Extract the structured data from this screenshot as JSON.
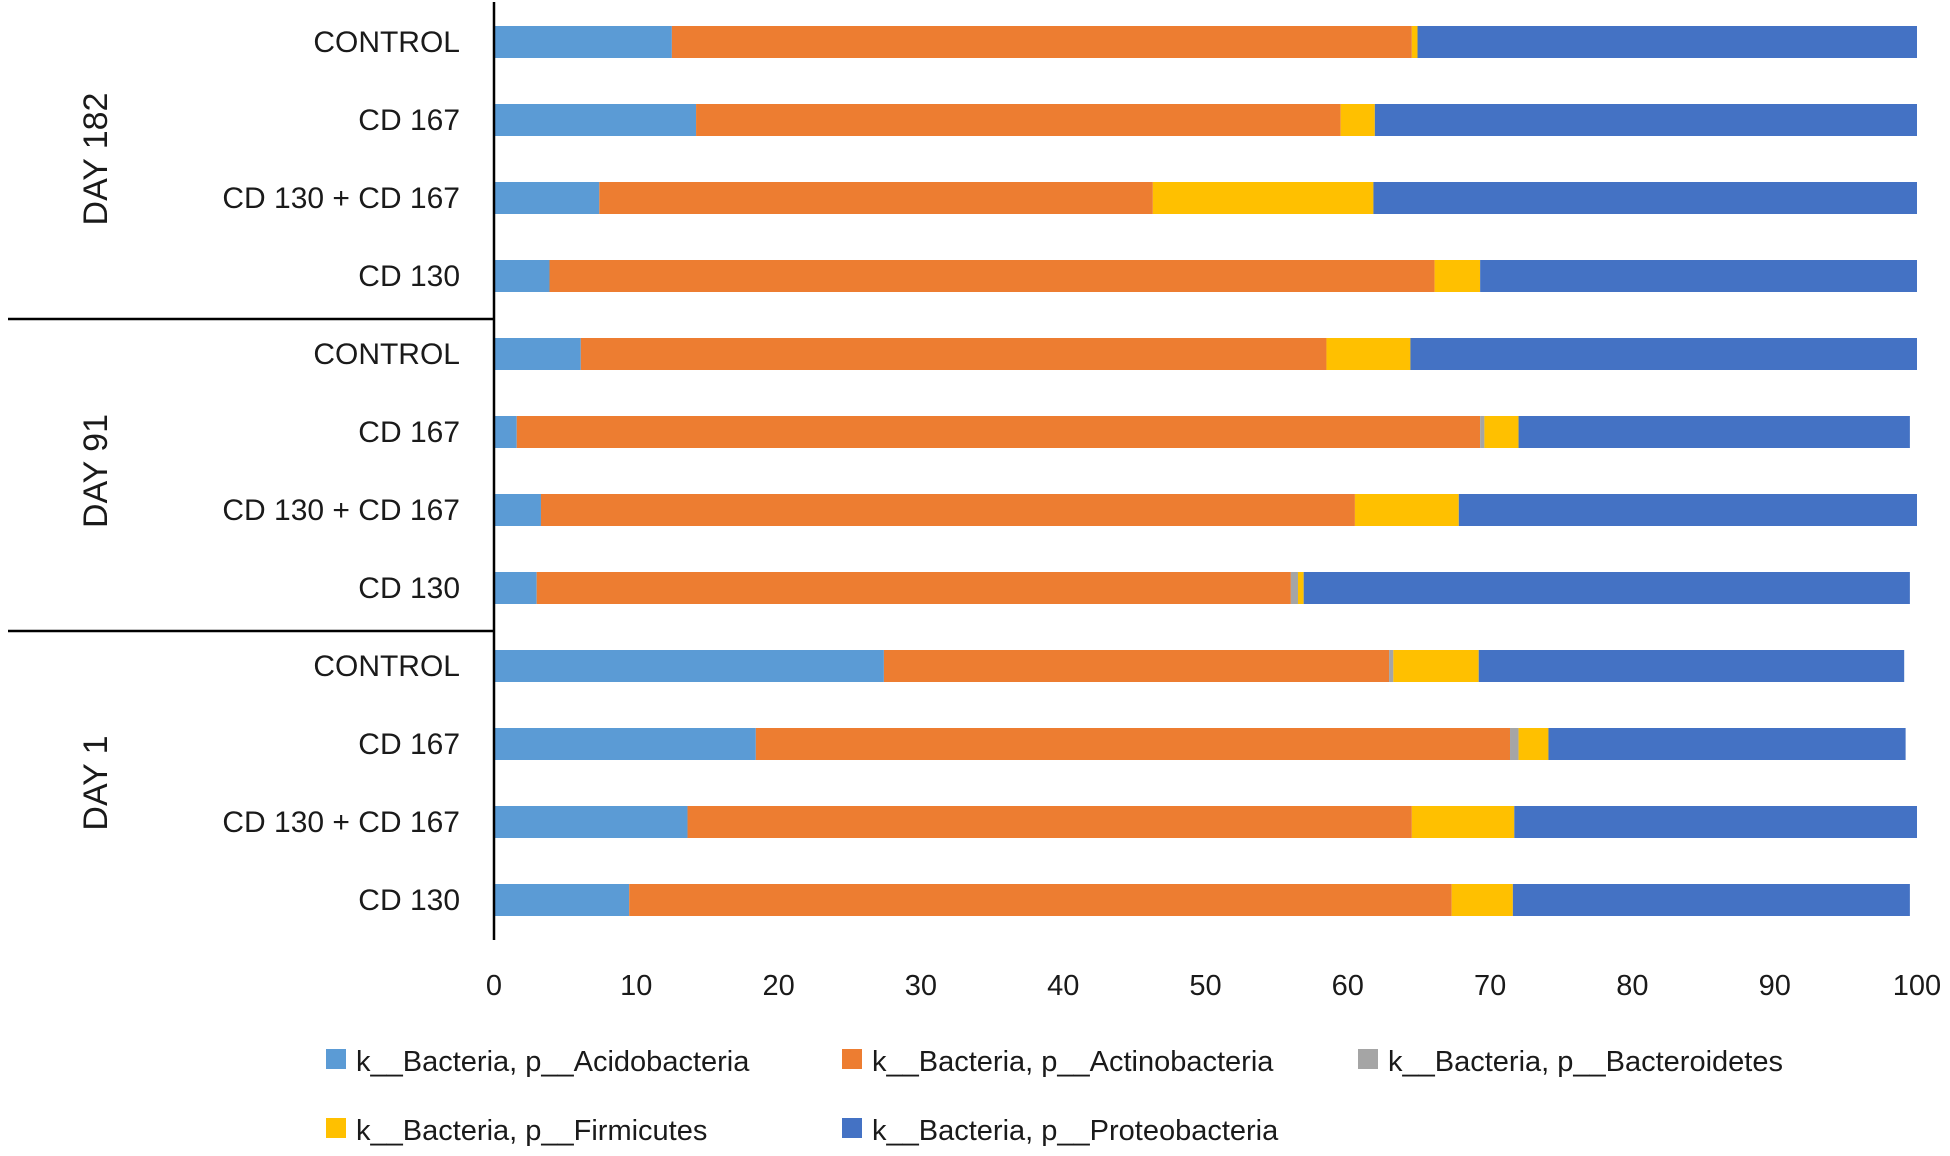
{
  "chart_data": {
    "type": "bar",
    "orientation": "horizontal",
    "stacked": true,
    "title": "",
    "xlabel": "",
    "ylabel": "",
    "xlim": [
      0,
      100
    ],
    "xticks": [
      "0",
      "10",
      "20",
      "30",
      "40",
      "50",
      "60",
      "70",
      "80",
      "90",
      "100"
    ],
    "grid": false,
    "legend_position": "bottom",
    "groups": [
      {
        "name": "DAY 182",
        "categories": [
          "CONTROL",
          "CD 167",
          "CD 130 + CD 167",
          "CD 130"
        ]
      },
      {
        "name": "DAY 91",
        "categories": [
          "CONTROL",
          "CD 167",
          "CD 130 + CD 167",
          "CD 130"
        ]
      },
      {
        "name": "DAY 1",
        "categories": [
          "CONTROL",
          "CD 167",
          "CD 130 + CD 167",
          "CD 130"
        ]
      }
    ],
    "series": [
      {
        "name": "k__Bacteria, p__Acidobacteria",
        "color": "#5b9bd5",
        "values": [
          12.5,
          14.2,
          7.4,
          3.9,
          6.1,
          1.6,
          3.3,
          3.0,
          27.4,
          18.4,
          13.6,
          9.5
        ]
      },
      {
        "name": "k__Bacteria, p__Actinobacteria",
        "color": "#ed7d31",
        "values": [
          52.0,
          45.3,
          38.9,
          62.2,
          52.4,
          67.7,
          57.2,
          53.0,
          35.5,
          53.0,
          50.9,
          57.8
        ]
      },
      {
        "name": "k__Bacteria, p__Bacteroidetes",
        "color": "#a5a5a5",
        "values": [
          0.0,
          0.0,
          0.0,
          0.0,
          0.0,
          0.3,
          0.0,
          0.5,
          0.3,
          0.6,
          0.0,
          0.0
        ]
      },
      {
        "name": "k__Bacteria, p__Firmicutes",
        "color": "#ffc000",
        "values": [
          0.4,
          2.4,
          15.5,
          3.2,
          5.9,
          2.4,
          7.3,
          0.4,
          6.0,
          2.1,
          7.2,
          4.3
        ]
      },
      {
        "name": "k__Bacteria, p__Proteobacteria",
        "color": "#4472c4",
        "values": [
          35.1,
          38.1,
          38.2,
          30.7,
          35.6,
          27.5,
          32.2,
          42.6,
          29.9,
          25.1,
          28.3,
          27.9
        ]
      }
    ]
  }
}
